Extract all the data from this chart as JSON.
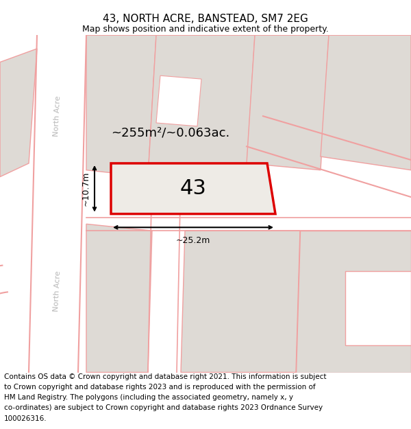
{
  "title": "43, NORTH ACRE, BANSTEAD, SM7 2EG",
  "subtitle": "Map shows position and indicative extent of the property.",
  "area_label": "~255m²/~0.063ac.",
  "property_number": "43",
  "dim_width": "~25.2m",
  "dim_height": "~10.7m",
  "road_label": "North Acre",
  "footer_lines": [
    "Contains OS data © Crown copyright and database right 2021. This information is subject",
    "to Crown copyright and database rights 2023 and is reproduced with the permission of",
    "HM Land Registry. The polygons (including the associated geometry, namely x, y",
    "co-ordinates) are subject to Crown copyright and database rights 2023 Ordnance Survey",
    "100026316."
  ],
  "map_bg": "#f2eeea",
  "property_fill": "#eeebe6",
  "property_edge": "#dd0000",
  "road_color": "#f0a0a0",
  "building_fill": "#dedad5",
  "building_edge": "#f0a0a0",
  "green_fill": "#d5e8d0",
  "title_fontsize": 11,
  "subtitle_fontsize": 9,
  "footer_fontsize": 7.5
}
